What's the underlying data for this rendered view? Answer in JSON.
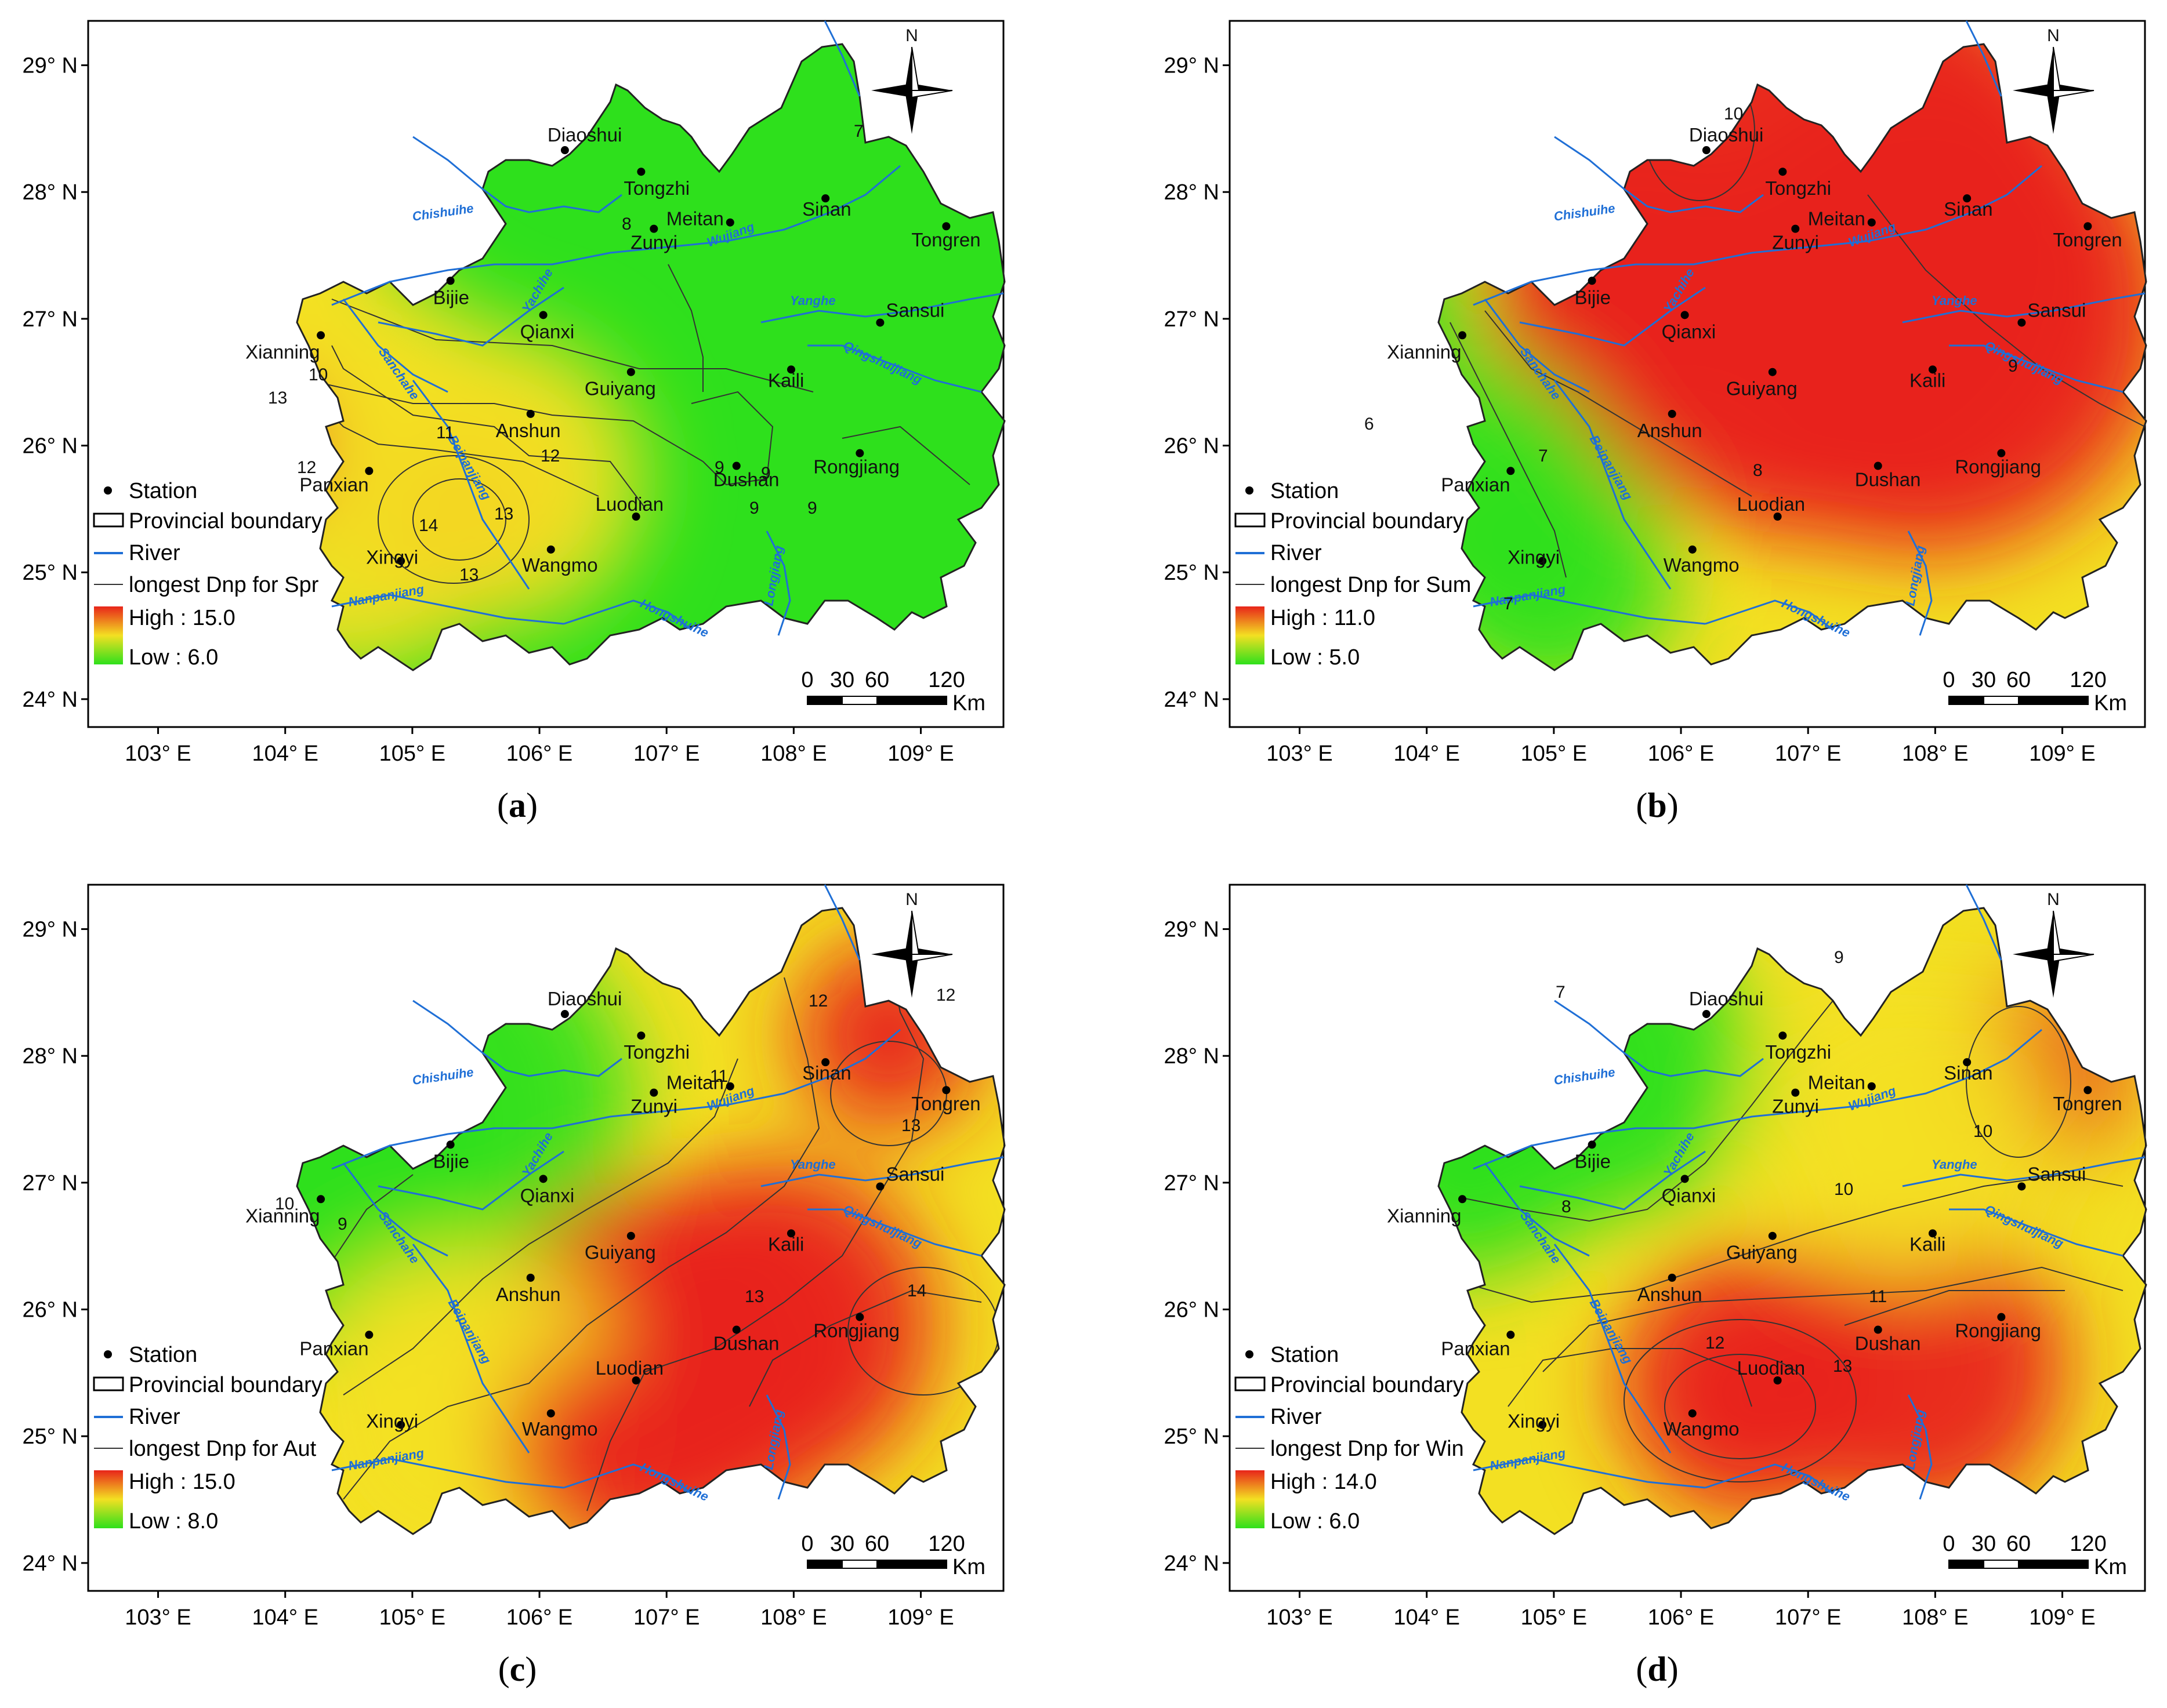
{
  "map_common": {
    "lat_labels": [
      "29° N",
      "28° N",
      "27° N",
      "26° N",
      "25° N",
      "24° N"
    ],
    "lon_labels": [
      "103° E",
      "104° E",
      "105° E",
      "106° E",
      "107° E",
      "108° E",
      "109° E"
    ],
    "north_label": "N",
    "scale_numbers": [
      "0",
      "30",
      "60",
      "120"
    ],
    "scale_unit": "Km",
    "legend_station": "Station",
    "legend_boundary": "Provincial boundary",
    "legend_river": "River",
    "stations": [
      "Diaoshui",
      "Tongzhi",
      "Meitan",
      "Zunyi",
      "Sinan",
      "Tongren",
      "Bijie",
      "Qianxi",
      "Sansui",
      "Xianning",
      "Guiyang",
      "Kaili",
      "Anshun",
      "Panxian",
      "Dushan",
      "Rongjiang",
      "Luodian",
      "Xingyi",
      "Wangmo"
    ],
    "rivers": [
      "Chishuihe",
      "Wujiang",
      "Yachihe",
      "Yanghe",
      "Sanchahe",
      "Qingshuijiang",
      "Beipanjiang",
      "Nanpanjiang",
      "Hongshuihe",
      "Longjiang"
    ],
    "colors": {
      "high": "#e8251a",
      "mid": "#f3e022",
      "low": "#2ee01c",
      "river": "#1f6fd6"
    }
  },
  "panels": [
    {
      "tag": "a",
      "legend_line": "longest Dnp for Spr",
      "legend_high": "High : 15.0",
      "legend_low": "Low : 6.0",
      "contour_labels": [
        "7",
        "8",
        "9",
        "9",
        "9",
        "9",
        "10",
        "11",
        "12",
        "12",
        "13",
        "13",
        "13",
        "14"
      ]
    },
    {
      "tag": "b",
      "legend_line": "longest Dnp for Sum",
      "legend_high": "High : 11.0",
      "legend_low": "Low : 5.0",
      "contour_labels": [
        "10",
        "9",
        "8",
        "7",
        "7",
        "6"
      ]
    },
    {
      "tag": "c",
      "legend_line": "longest Dnp for Aut",
      "legend_high": "High : 15.0",
      "legend_low": "Low : 8.0",
      "contour_labels": [
        "9",
        "10",
        "11",
        "12",
        "12",
        "13",
        "13",
        "14"
      ]
    },
    {
      "tag": "d",
      "legend_line": "longest Dnp for Win",
      "legend_high": "High : 14.0",
      "legend_low": "Low : 6.0",
      "contour_labels": [
        "7",
        "8",
        "9",
        "10",
        "10",
        "11",
        "12",
        "13"
      ]
    }
  ]
}
